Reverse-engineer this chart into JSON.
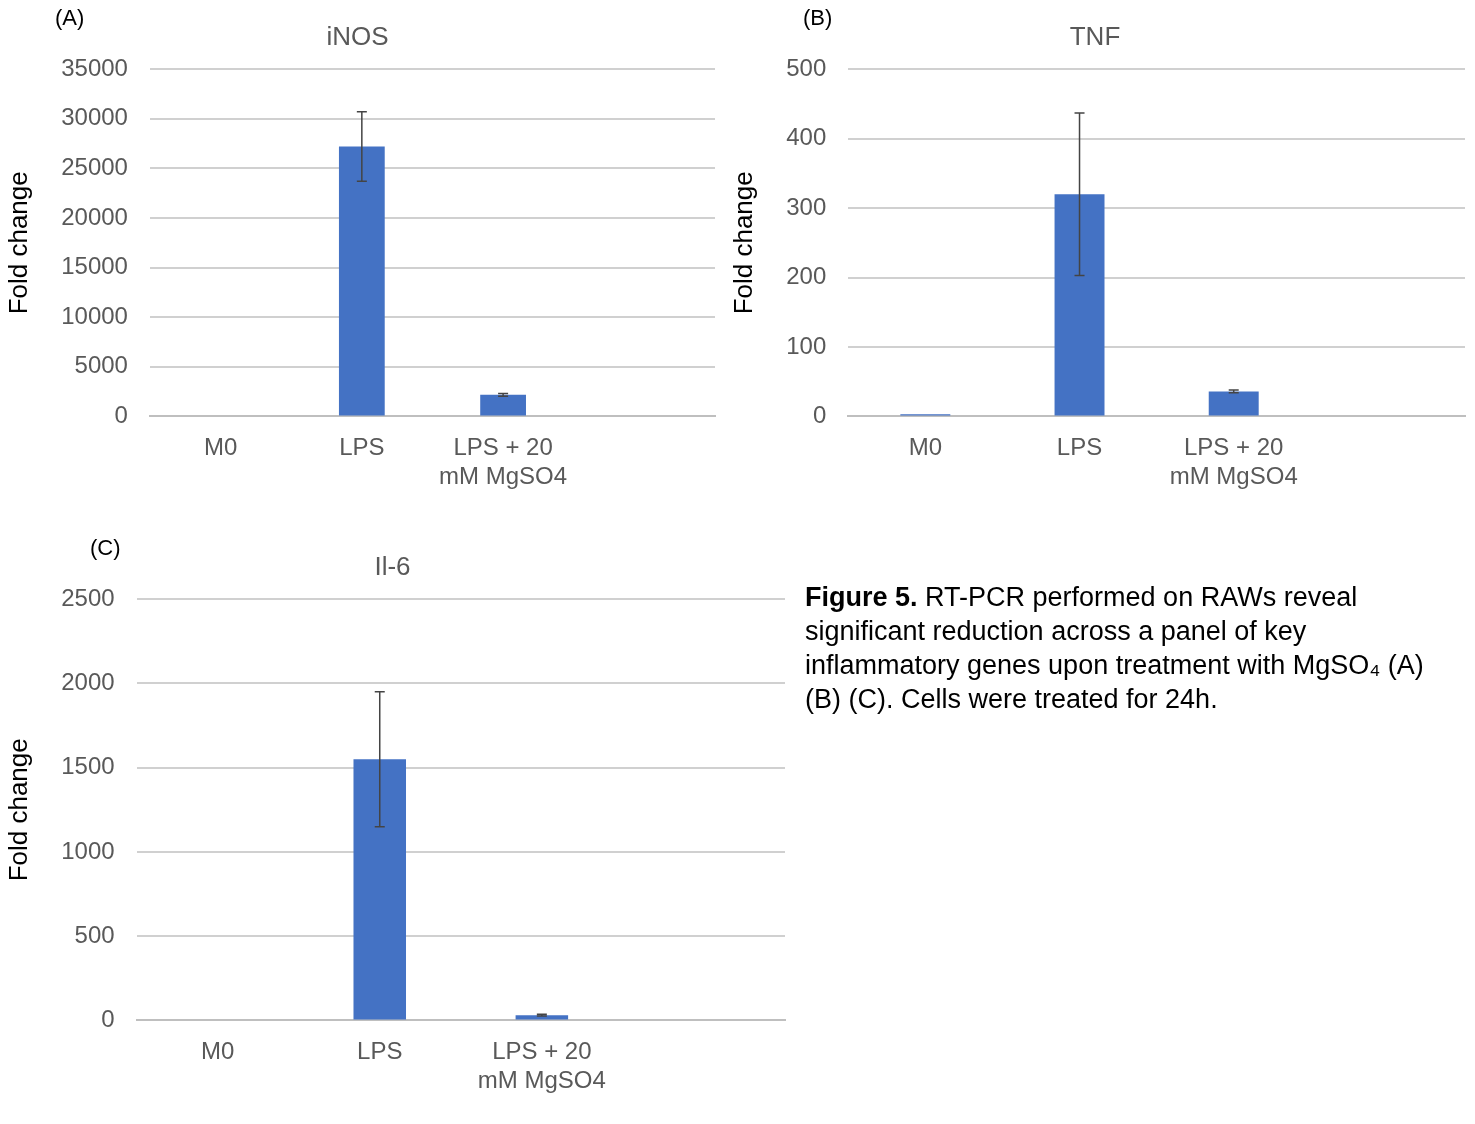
{
  "chart_data": [
    {
      "type": "bar",
      "title": "iNOS",
      "annotations": [
        "(A)"
      ],
      "ylabel": "Fold change",
      "categories": [
        "M0",
        "LPS",
        "LPS + 20 mM MgSO4",
        null
      ],
      "values": [
        0,
        27200,
        2170,
        null
      ],
      "errors": [
        null,
        3500,
        150,
        null
      ],
      "color": "#4472c4",
      "ylim": [
        0,
        35000
      ],
      "yticks": [
        0,
        5000,
        10000,
        15000,
        20000,
        25000,
        30000,
        35000
      ],
      "grid": "y"
    },
    {
      "type": "bar",
      "title": "TNF",
      "annotations": [
        "(B)"
      ],
      "ylabel": "Fold change",
      "categories": [
        "M0",
        "LPS",
        "LPS + 20 mM MgSO4",
        null
      ],
      "values": [
        3,
        320,
        36,
        null
      ],
      "errors": [
        null,
        117,
        2,
        null
      ],
      "color": "#4472c4",
      "ylim": [
        0,
        500
      ],
      "yticks": [
        0,
        100,
        200,
        300,
        400,
        500
      ],
      "grid": "y"
    },
    {
      "type": "bar",
      "title": "Il-6",
      "annotations": [
        "(C)"
      ],
      "ylabel": "Fold change",
      "categories": [
        "M0",
        "LPS",
        "LPS + 20 mM MgSO4",
        null
      ],
      "values": [
        0,
        1550,
        31,
        null
      ],
      "errors": [
        null,
        400,
        5,
        null
      ],
      "color": "#4472c4",
      "ylim": [
        0,
        2500
      ],
      "yticks": [
        0,
        500,
        1000,
        1500,
        2000,
        2500
      ],
      "grid": "y"
    },
    {
      "type": "other",
      "title": "Figure 5.",
      "annotations": [
        "RT-PCR performed on RAWs reveal significant reduction across a panel of key inflammatory genes upon treatment with MgSO₄ (A) (B) (C). Cells were treated for 24h."
      ]
    }
  ]
}
